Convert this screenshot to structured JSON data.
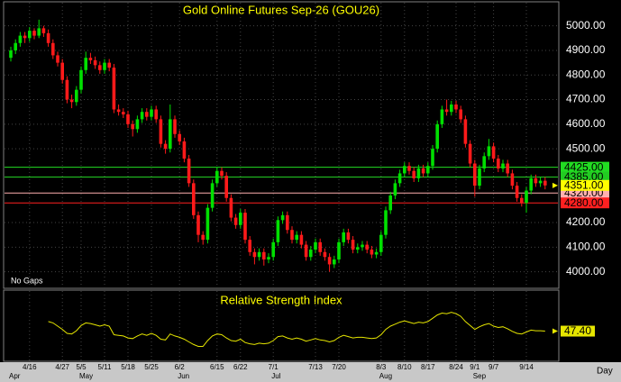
{
  "chart_data": {
    "type": "candlestick",
    "title": "Gold Online Futures Sep-26 (GOU26)",
    "note": "No Gaps",
    "period_label": "Day",
    "up_color": "#00e000",
    "down_color": "#ff1a1a",
    "grid": true,
    "ylim": [
      3940,
      5105
    ],
    "yticks": [
      {
        "value": 4000,
        "label": "4000.00"
      },
      {
        "value": 4100,
        "label": "4100.00"
      },
      {
        "value": 4200,
        "label": "4200.00"
      },
      {
        "value": 4500,
        "label": "4500.00"
      },
      {
        "value": 4600,
        "label": "4600.00"
      },
      {
        "value": 4700,
        "label": "4700.00"
      },
      {
        "value": 4800,
        "label": "4800.00"
      },
      {
        "value": 4900,
        "label": "4900.00"
      },
      {
        "value": 5000,
        "label": "5000.00"
      }
    ],
    "levels": [
      {
        "value": 4425,
        "label": "4425.00",
        "color": "#22dd22"
      },
      {
        "value": 4385,
        "label": "4385.00",
        "color": "#22cc22"
      },
      {
        "value": 4320,
        "label": "4320.00",
        "color": "#ffb0b0"
      },
      {
        "value": 4280,
        "label": "4280.00",
        "color": "#ff2020"
      }
    ],
    "current_price": {
      "value": 4351,
      "label": "4351.00",
      "color": "#ffff00"
    },
    "categories": [
      null,
      null,
      null,
      null,
      "4/16",
      null,
      null,
      null,
      null,
      null,
      null,
      "4/27",
      null,
      null,
      null,
      "5/5",
      null,
      null,
      null,
      null,
      "5/11",
      null,
      null,
      null,
      null,
      "5/18",
      null,
      null,
      null,
      null,
      "5/25",
      null,
      null,
      null,
      null,
      null,
      "6/2",
      null,
      null,
      null,
      null,
      null,
      null,
      null,
      "6/15",
      null,
      null,
      null,
      null,
      "6/22",
      null,
      null,
      null,
      null,
      null,
      null,
      "7/1",
      null,
      null,
      null,
      null,
      null,
      null,
      null,
      null,
      "7/13",
      null,
      null,
      null,
      null,
      "7/20",
      null,
      null,
      null,
      null,
      null,
      null,
      null,
      null,
      "8/3",
      null,
      null,
      null,
      null,
      "8/10",
      null,
      null,
      null,
      null,
      "8/17",
      null,
      null,
      null,
      null,
      null,
      "8/24",
      null,
      null,
      null,
      "9/1",
      null,
      null,
      null,
      "9/7",
      null,
      null,
      null,
      null,
      null,
      null,
      "9/14",
      null,
      null,
      null,
      null
    ],
    "months": [
      "Apr",
      null,
      null,
      null,
      null,
      null,
      null,
      null,
      null,
      null,
      null,
      null,
      null,
      null,
      null,
      "May",
      null,
      null,
      null,
      null,
      null,
      null,
      null,
      null,
      null,
      null,
      null,
      null,
      null,
      null,
      null,
      null,
      null,
      null,
      null,
      null,
      "Jun",
      null,
      null,
      null,
      null,
      null,
      null,
      null,
      null,
      null,
      null,
      null,
      null,
      null,
      null,
      null,
      null,
      null,
      null,
      null,
      "Jul",
      null,
      null,
      null,
      null,
      null,
      null,
      null,
      null,
      null,
      null,
      null,
      null,
      null,
      null,
      null,
      null,
      null,
      null,
      null,
      null,
      null,
      null,
      "Aug",
      null,
      null,
      null,
      null,
      null,
      null,
      null,
      null,
      null,
      null,
      null,
      null,
      null,
      null,
      null,
      null,
      null,
      null,
      null,
      "Sep",
      null,
      null,
      null,
      null,
      null,
      null,
      null,
      null,
      null,
      null,
      null,
      null,
      null,
      null,
      null
    ],
    "ohlc": [
      [
        4870,
        4915,
        4855,
        4900
      ],
      [
        4900,
        4945,
        4885,
        4930
      ],
      [
        4930,
        4975,
        4915,
        4960
      ],
      [
        4960,
        4975,
        4930,
        4950
      ],
      [
        4950,
        4995,
        4935,
        4980
      ],
      [
        4980,
        4990,
        4945,
        4960
      ],
      [
        4960,
        5025,
        4950,
        4990
      ],
      [
        4990,
        5000,
        4955,
        4970
      ],
      [
        4970,
        4985,
        4915,
        4930
      ],
      [
        4930,
        4945,
        4865,
        4880
      ],
      [
        4880,
        4895,
        4835,
        4850
      ],
      [
        4850,
        4865,
        4765,
        4780
      ],
      [
        4780,
        4795,
        4685,
        4700
      ],
      [
        4700,
        4720,
        4665,
        4690
      ],
      [
        4690,
        4755,
        4675,
        4740
      ],
      [
        4740,
        4835,
        4725,
        4820
      ],
      [
        4820,
        4895,
        4805,
        4870
      ],
      [
        4870,
        4890,
        4845,
        4860
      ],
      [
        4860,
        4875,
        4825,
        4840
      ],
      [
        4840,
        4855,
        4805,
        4820
      ],
      [
        4820,
        4865,
        4805,
        4850
      ],
      [
        4850,
        4865,
        4815,
        4830
      ],
      [
        4830,
        4845,
        4645,
        4660
      ],
      [
        4660,
        4680,
        4635,
        4650
      ],
      [
        4650,
        4665,
        4625,
        4640
      ],
      [
        4640,
        4655,
        4585,
        4600
      ],
      [
        4600,
        4615,
        4550,
        4580
      ],
      [
        4580,
        4635,
        4565,
        4620
      ],
      [
        4620,
        4665,
        4605,
        4650
      ],
      [
        4650,
        4665,
        4615,
        4630
      ],
      [
        4630,
        4675,
        4615,
        4660
      ],
      [
        4660,
        4675,
        4605,
        4620
      ],
      [
        4620,
        4635,
        4505,
        4520
      ],
      [
        4520,
        4535,
        4480,
        4500
      ],
      [
        4500,
        4680,
        4485,
        4620
      ],
      [
        4620,
        4635,
        4545,
        4560
      ],
      [
        4560,
        4575,
        4515,
        4530
      ],
      [
        4530,
        4545,
        4445,
        4460
      ],
      [
        4460,
        4475,
        4345,
        4360
      ],
      [
        4360,
        4375,
        4215,
        4230
      ],
      [
        4230,
        4245,
        4120,
        4150
      ],
      [
        4150,
        4165,
        4110,
        4130
      ],
      [
        4130,
        4275,
        4115,
        4260
      ],
      [
        4260,
        4375,
        4245,
        4360
      ],
      [
        4360,
        4425,
        4345,
        4410
      ],
      [
        4410,
        4425,
        4375,
        4390
      ],
      [
        4390,
        4405,
        4285,
        4300
      ],
      [
        4300,
        4315,
        4205,
        4220
      ],
      [
        4220,
        4235,
        4175,
        4190
      ],
      [
        4190,
        4255,
        4175,
        4240
      ],
      [
        4240,
        4255,
        4115,
        4130
      ],
      [
        4130,
        4145,
        4065,
        4080
      ],
      [
        4080,
        4095,
        4030,
        4060
      ],
      [
        4060,
        4095,
        4045,
        4080
      ],
      [
        4080,
        4095,
        4025,
        4050
      ],
      [
        4050,
        4075,
        4035,
        4060
      ],
      [
        4060,
        4135,
        4045,
        4120
      ],
      [
        4120,
        4225,
        4105,
        4210
      ],
      [
        4210,
        4245,
        4195,
        4230
      ],
      [
        4230,
        4245,
        4155,
        4170
      ],
      [
        4170,
        4185,
        4115,
        4130
      ],
      [
        4130,
        4165,
        4115,
        4150
      ],
      [
        4150,
        4165,
        4095,
        4110
      ],
      [
        4110,
        4125,
        4045,
        4060
      ],
      [
        4060,
        4105,
        4045,
        4090
      ],
      [
        4090,
        4135,
        4075,
        4120
      ],
      [
        4120,
        4135,
        4065,
        4080
      ],
      [
        4080,
        4095,
        4045,
        4060
      ],
      [
        4060,
        4075,
        4000,
        4030
      ],
      [
        4030,
        4065,
        4015,
        4050
      ],
      [
        4050,
        4135,
        4035,
        4120
      ],
      [
        4120,
        4175,
        4105,
        4160
      ],
      [
        4160,
        4175,
        4115,
        4130
      ],
      [
        4130,
        4145,
        4075,
        4090
      ],
      [
        4090,
        4115,
        4075,
        4100
      ],
      [
        4100,
        4125,
        4085,
        4110
      ],
      [
        4110,
        4125,
        4075,
        4090
      ],
      [
        4090,
        4105,
        4055,
        4070
      ],
      [
        4070,
        4095,
        4055,
        4080
      ],
      [
        4080,
        4165,
        4065,
        4150
      ],
      [
        4150,
        4265,
        4135,
        4250
      ],
      [
        4250,
        4325,
        4235,
        4310
      ],
      [
        4310,
        4375,
        4295,
        4360
      ],
      [
        4360,
        4415,
        4345,
        4400
      ],
      [
        4400,
        4445,
        4385,
        4430
      ],
      [
        4430,
        4445,
        4395,
        4410
      ],
      [
        4410,
        4425,
        4365,
        4380
      ],
      [
        4380,
        4435,
        4365,
        4420
      ],
      [
        4420,
        4435,
        4385,
        4400
      ],
      [
        4400,
        4445,
        4385,
        4430
      ],
      [
        4430,
        4515,
        4415,
        4500
      ],
      [
        4500,
        4615,
        4485,
        4600
      ],
      [
        4600,
        4675,
        4585,
        4660
      ],
      [
        4660,
        4700,
        4635,
        4650
      ],
      [
        4650,
        4695,
        4635,
        4680
      ],
      [
        4680,
        4695,
        4645,
        4660
      ],
      [
        4660,
        4675,
        4605,
        4620
      ],
      [
        4620,
        4635,
        4505,
        4520
      ],
      [
        4520,
        4535,
        4425,
        4440
      ],
      [
        4440,
        4455,
        4305,
        4350
      ],
      [
        4350,
        4435,
        4335,
        4420
      ],
      [
        4420,
        4485,
        4405,
        4470
      ],
      [
        4470,
        4540,
        4455,
        4510
      ],
      [
        4510,
        4525,
        4445,
        4460
      ],
      [
        4460,
        4475,
        4405,
        4420
      ],
      [
        4420,
        4455,
        4405,
        4440
      ],
      [
        4440,
        4455,
        4385,
        4400
      ],
      [
        4400,
        4415,
        4335,
        4350
      ],
      [
        4350,
        4365,
        4285,
        4300
      ],
      [
        4300,
        4315,
        4265,
        4280
      ],
      [
        4280,
        4345,
        4240,
        4330
      ],
      [
        4330,
        4395,
        4315,
        4380
      ],
      [
        4380,
        4395,
        4345,
        4360
      ],
      [
        4360,
        4385,
        4345,
        4370
      ],
      [
        4370,
        4385,
        4335,
        4351
      ]
    ],
    "rsi": {
      "title": "Relative Strength Index",
      "color": "#e6e600",
      "ylim": [
        0,
        110
      ],
      "current_label": "47.40",
      "values": [
        null,
        null,
        null,
        null,
        null,
        null,
        null,
        null,
        62,
        60,
        55,
        50,
        44,
        43,
        48,
        56,
        60,
        59,
        57,
        55,
        57,
        55,
        42,
        41,
        40,
        37,
        36,
        40,
        43,
        41,
        44,
        41,
        35,
        34,
        43,
        40,
        38,
        35,
        31,
        27,
        24,
        24,
        33,
        40,
        43,
        42,
        37,
        33,
        32,
        35,
        30,
        28,
        27,
        29,
        28,
        29,
        33,
        39,
        40,
        37,
        35,
        37,
        35,
        32,
        34,
        36,
        34,
        33,
        31,
        33,
        38,
        41,
        39,
        37,
        38,
        38,
        37,
        36,
        37,
        42,
        50,
        55,
        58,
        61,
        63,
        61,
        59,
        61,
        60,
        62,
        67,
        72,
        75,
        74,
        76,
        74,
        70,
        62,
        56,
        50,
        54,
        57,
        59,
        55,
        53,
        54,
        51,
        47,
        44,
        43,
        46,
        49,
        48,
        48,
        47.4
      ]
    }
  }
}
